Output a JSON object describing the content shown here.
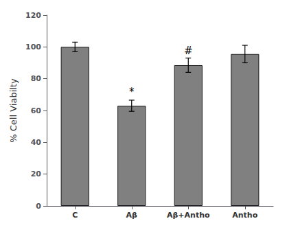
{
  "chart_data": {
    "type": "bar",
    "categories": [
      "C",
      "Aβ",
      "Aβ+Antho",
      "Antho"
    ],
    "values": [
      100.0,
      63.0,
      88.5,
      95.5
    ],
    "errors": [
      3.0,
      3.5,
      4.5,
      5.5
    ],
    "color": "#808080",
    "ylabel": "% Cell Viabilty",
    "ylim": [
      0,
      120
    ],
    "yticks": [
      0,
      20,
      40,
      60,
      80,
      100,
      120
    ],
    "annotations": [
      {
        "text": "*",
        "x": "Aβ",
        "y": 68.5
      },
      {
        "text": "#",
        "x": "Aβ+Antho",
        "y": 94.5
      }
    ],
    "grid": false
  }
}
